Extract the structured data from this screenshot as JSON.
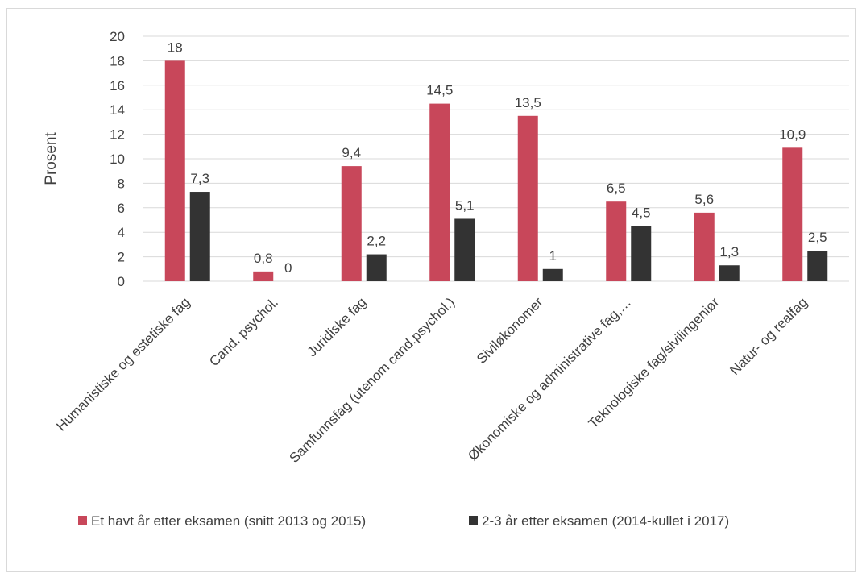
{
  "chart_data": {
    "type": "bar",
    "title": "",
    "xlabel": "",
    "ylabel": "Prosent",
    "ylim": [
      0,
      20
    ],
    "yticks": [
      0,
      2,
      4,
      6,
      8,
      10,
      12,
      14,
      16,
      18,
      20
    ],
    "grid": true,
    "legend_position": "bottom",
    "categories": [
      "Humanistiske og estetiske fag",
      "Cand. psychol.",
      "Juridiske fag",
      "Samfunnsfag (utenom cand.psychol.)",
      "Siviløkonomer",
      "Økonomiske og administrative fag,…",
      "Teknologiske fag/sivilingeniør",
      "Natur- og realfag"
    ],
    "series": [
      {
        "name": "Et havt år etter eksamen (snitt 2013 og 2015)",
        "color": "#c8475a",
        "values": [
          18,
          0.8,
          9.4,
          14.5,
          13.5,
          6.5,
          5.6,
          10.9
        ],
        "labels": [
          "18",
          "0,8",
          "9,4",
          "14,5",
          "13,5",
          "6,5",
          "5,6",
          "10,9"
        ]
      },
      {
        "name": "2-3 år etter eksamen (2014-kullet i 2017)",
        "color": "#333333",
        "values": [
          7.3,
          0,
          2.2,
          5.1,
          1,
          4.5,
          1.3,
          2.5
        ],
        "labels": [
          "7,3",
          "0",
          "2,2",
          "5,1",
          "1",
          "4,5",
          "1,3",
          "2,5"
        ]
      }
    ]
  }
}
